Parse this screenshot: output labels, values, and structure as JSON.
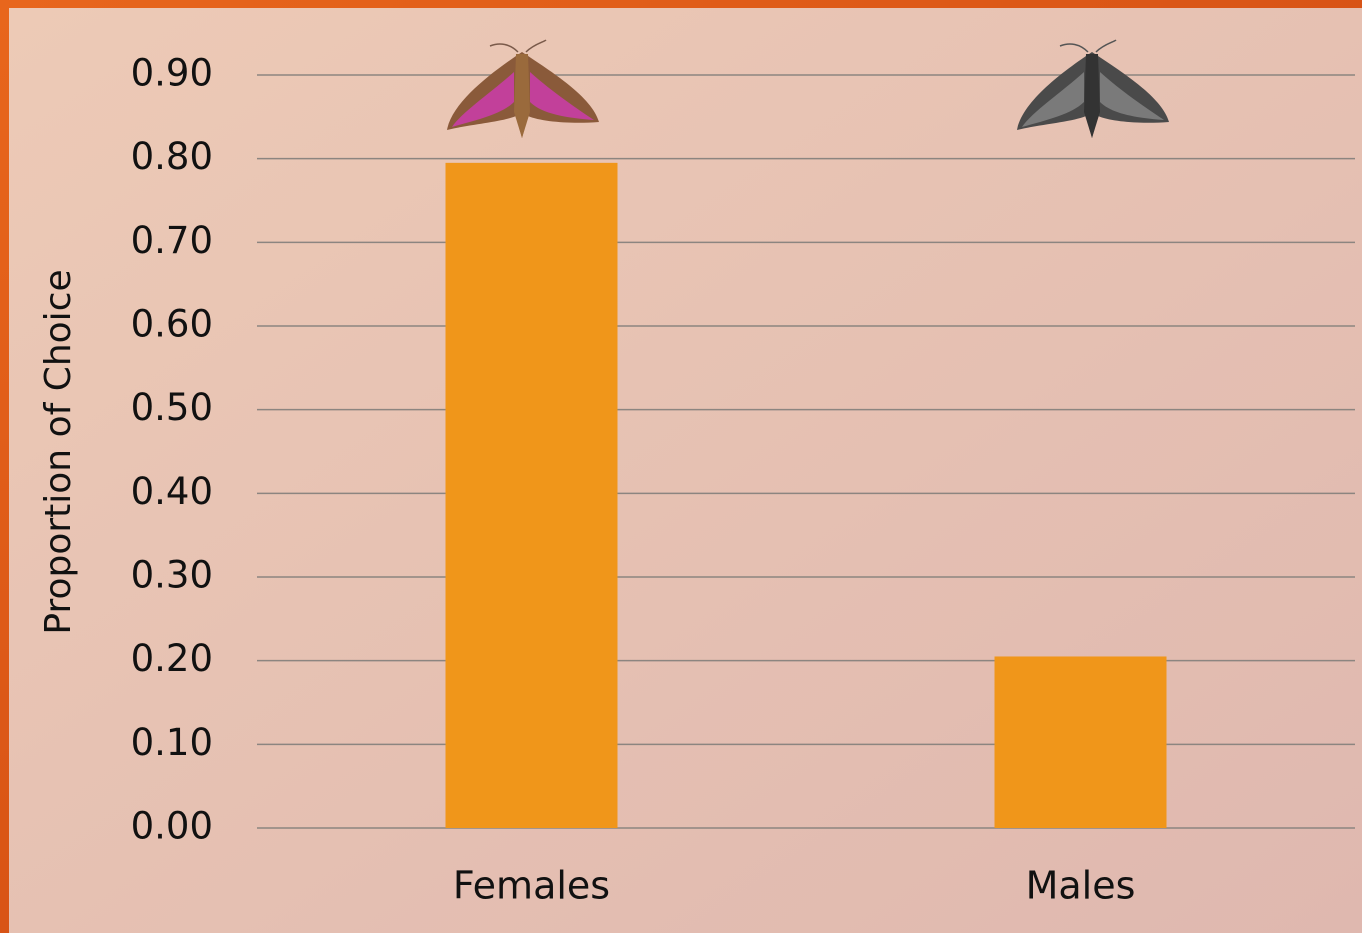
{
  "chart_data": {
    "type": "bar",
    "y_label": "Proportion of Choice",
    "categories": [
      "Females",
      "Males"
    ],
    "values": [
      0.795,
      0.205
    ],
    "color": "#f0961a",
    "ylim": [
      0,
      0.9
    ],
    "yticks": [
      {
        "value": 0,
        "label": "0.00"
      },
      {
        "value": 0.1,
        "label": "0.10"
      },
      {
        "value": 0.2,
        "label": "0.20"
      },
      {
        "value": 0.3,
        "label": "0.30"
      },
      {
        "value": 0.4,
        "label": "0.40"
      },
      {
        "value": 0.5,
        "label": "0.50"
      },
      {
        "value": 0.6,
        "label": "0.60"
      },
      {
        "value": 0.7,
        "label": "0.70"
      },
      {
        "value": 0.8,
        "label": "0.80"
      },
      {
        "value": 0.9,
        "label": "0.90"
      }
    ],
    "grid": true
  }
}
